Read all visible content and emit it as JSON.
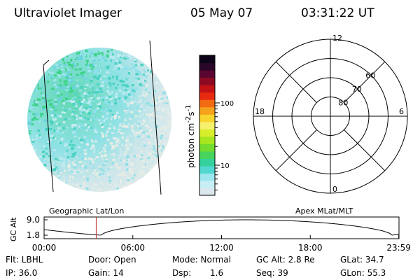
{
  "header": {
    "instrument": "Ultraviolet Imager",
    "date": "05 May 07",
    "time": "03:31:22 UT"
  },
  "colorbar": {
    "unit": "photon cm",
    "unit_exp1": "-2",
    "unit_s": "s",
    "unit_exp2": "-1",
    "ticks": [
      {
        "label": "100",
        "value": 100
      },
      {
        "label": "10",
        "value": 10
      }
    ],
    "colors": [
      "#dbe9ee",
      "#c7eef4",
      "#9ee6ee",
      "#52d8d0",
      "#34d19c",
      "#48d45c",
      "#74dc2e",
      "#a8e620",
      "#d8ee2c",
      "#f6f06c",
      "#f8d42e",
      "#f6a21c",
      "#f26a12",
      "#e82a10",
      "#c21216",
      "#8e0a22",
      "#5a0630",
      "#2a0628",
      "#0e0418"
    ]
  },
  "polar_grid": {
    "labels": {
      "top": "12",
      "bottom": "0",
      "left": "18",
      "right": "6"
    },
    "latitudes": [
      {
        "label": "80",
        "lat": 80
      },
      {
        "label": "70",
        "lat": 70
      },
      {
        "label": "60",
        "lat": 60
      }
    ]
  },
  "timeline": {
    "left_label": "Geographic Lat/Lon",
    "right_label": "Apex  MLat/MLT",
    "ylabel": "GC Alt",
    "yticks": [
      {
        "label": "9.0",
        "value": 9.0
      },
      {
        "label": "1.8",
        "value": 1.8
      }
    ],
    "xticks": [
      {
        "label": "00:00",
        "hour": 0
      },
      {
        "label": "06:00",
        "hour": 6
      },
      {
        "label": "12:00",
        "hour": 12
      },
      {
        "label": "18:00",
        "hour": 18
      },
      {
        "label": "23:59",
        "hour": 23.983
      }
    ],
    "current_hour": 3.523,
    "marker_color": "#c02a2a"
  },
  "info": {
    "flt": "Flt: LBHL",
    "door": "Door: Open",
    "mode": "Mode: Normal",
    "gcalt": "GC Alt: 2.8 Re",
    "glat": "GLat: 34.7",
    "ip": "IP: 36.0",
    "gain": "Gain: 14",
    "dsp_label": "Dsp:",
    "dsp_value": "1.6",
    "seq": "Seq: 39",
    "glon": "GLon:  55.3"
  }
}
